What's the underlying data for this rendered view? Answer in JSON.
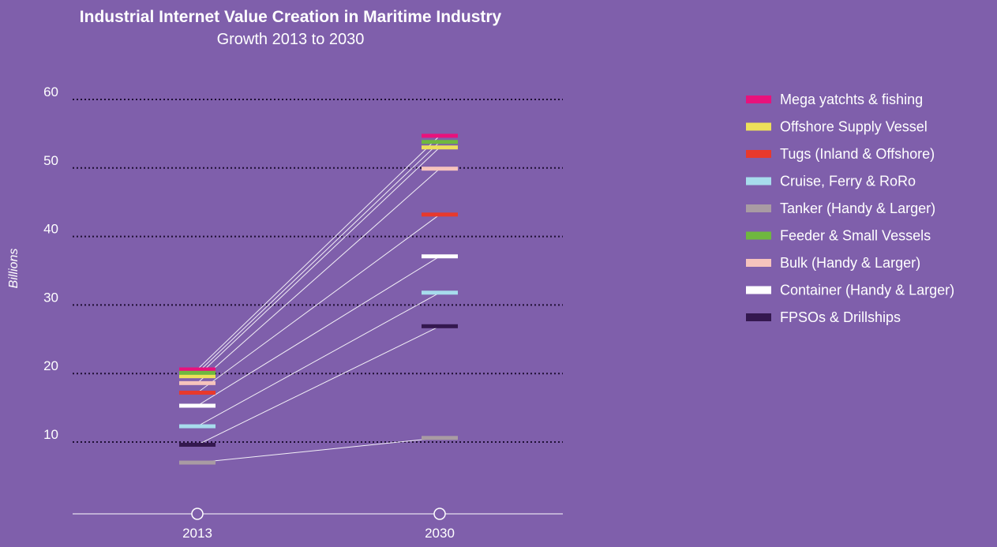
{
  "chart_data": {
    "type": "slope",
    "title": "Industrial Internet Value Creation in Maritime Industry",
    "subtitle": "Growth 2013 to 2030",
    "ylabel": "Billions",
    "xlabel": "",
    "ylim": [
      0,
      60
    ],
    "yticks": [
      10,
      20,
      30,
      40,
      50,
      60
    ],
    "grid": true,
    "legend_position": "right",
    "categories": [
      "2013",
      "2030"
    ],
    "series": [
      {
        "name": "Mega yatchts & fishing",
        "color": "#e8127c",
        "values": [
          20.6,
          54.7
        ]
      },
      {
        "name": "Offshore Supply Vessel",
        "color": "#ede05a",
        "values": [
          19.6,
          53.0
        ]
      },
      {
        "name": "Tugs (Inland & Offshore)",
        "color": "#e8392c",
        "values": [
          17.2,
          43.2
        ]
      },
      {
        "name": "Cruise, Ferry & RoRo",
        "color": "#a7dcec",
        "values": [
          12.3,
          31.8
        ]
      },
      {
        "name": "Tanker (Handy & Larger)",
        "color": "#a99ba3",
        "values": [
          7.0,
          10.6
        ]
      },
      {
        "name": "Feeder & Small Vessels",
        "color": "#6fb73f",
        "values": [
          20.1,
          53.8
        ]
      },
      {
        "name": "Bulk (Handy & Larger)",
        "color": "#f6c3bd",
        "values": [
          18.6,
          49.9
        ]
      },
      {
        "name": "Container (Handy & Larger)",
        "color": "#ffffff",
        "values": [
          15.3,
          37.1
        ]
      },
      {
        "name": "FPSOs & Drillships",
        "color": "#34184f",
        "values": [
          9.6,
          26.9
        ]
      }
    ]
  }
}
